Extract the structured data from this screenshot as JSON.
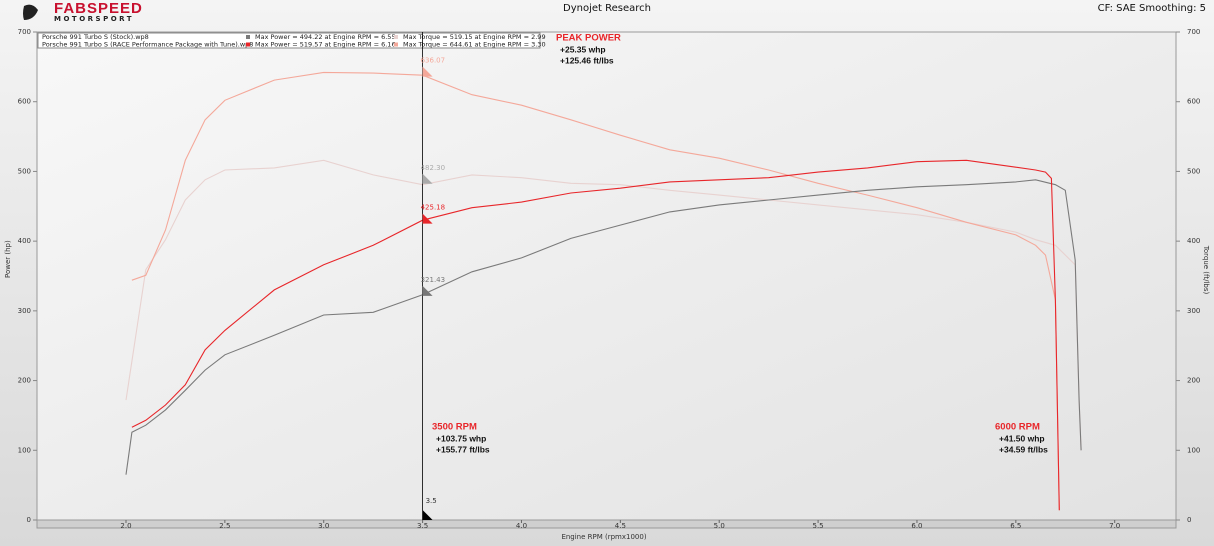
{
  "header": {
    "logo": "FABSPEED",
    "logo_sub": "MOTORSPORT",
    "title": "Dynojet Research",
    "settings": "CF: SAE Smoothing: 5"
  },
  "legend_runs": [
    {
      "file": "Porsche 991 Turbo S (Stock).wp8",
      "max_power": "Max Power = 494.22 at Engine RPM = 6.55",
      "max_torque": "Max Torque = 519.15 at Engine RPM = 2.99"
    },
    {
      "file": "Porsche 991 Turbo S (RACE Performance Package with Tune).wp8",
      "max_power": "Max Power = 519.57 at Engine RPM = 6.16",
      "max_torque": "Max Torque = 644.61 at Engine RPM = 3.30"
    }
  ],
  "chart_data": {
    "type": "line",
    "x_label": "Engine RPM (rpmx1000)",
    "y_label": "Power (hp)",
    "y2_label": "Torque (ft/lbs)",
    "xlim": [
      1.55,
      7.31
    ],
    "ylim": [
      0,
      700
    ],
    "y2lim": [
      0,
      700
    ],
    "xticks": [
      {
        "value": 2,
        "label": "2.0"
      },
      2.5,
      {
        "value": 3,
        "label": "3.0"
      },
      3.5,
      {
        "value": 4,
        "label": "4.0"
      },
      4.5,
      {
        "value": 5,
        "label": "5.0"
      },
      5.5,
      {
        "value": 6,
        "label": "6.0"
      },
      6.5,
      {
        "value": 7,
        "label": "7.0"
      }
    ],
    "yticks": [
      0,
      100,
      200,
      300,
      400,
      500,
      600,
      700
    ],
    "y2ticks": [
      0,
      100,
      200,
      300,
      400,
      500,
      600,
      700
    ],
    "grid": false,
    "series": [
      {
        "color": "#e8d2d0",
        "axis": "y2",
        "x": [
          2.0,
          2.1,
          2.2,
          2.3,
          2.4,
          2.5,
          2.75,
          3.0,
          3.25,
          3.5,
          3.75,
          4.0,
          4.25,
          4.5,
          4.75,
          5.0,
          5.25,
          5.5,
          5.75,
          6.0,
          6.25,
          6.5,
          6.6,
          6.7,
          6.8,
          6.82,
          6.83
        ],
        "values": [
          172,
          359,
          402,
          459,
          488,
          502,
          505,
          516,
          495,
          481,
          495,
          491,
          483,
          481,
          473,
          466,
          459,
          452,
          445,
          438,
          427,
          413,
          402,
          394,
          366,
          172,
          100
        ]
      },
      {
        "color": "#f4a89a",
        "axis": "y2",
        "x": [
          2.03,
          2.1,
          2.2,
          2.3,
          2.4,
          2.5,
          2.75,
          3.0,
          3.25,
          3.5,
          3.75,
          4.0,
          4.25,
          4.5,
          4.75,
          5.0,
          5.25,
          5.5,
          5.75,
          6.0,
          6.25,
          6.5,
          6.6,
          6.65,
          6.7,
          6.72
        ],
        "values": [
          344,
          351,
          416,
          516,
          574,
          602,
          631,
          642,
          641,
          638,
          610,
          595,
          574,
          552,
          531,
          519,
          502,
          483,
          466,
          448,
          427,
          409,
          394,
          380,
          316,
          14
        ]
      },
      {
        "color": "#7a7a7a",
        "x": [
          2.0,
          2.03,
          2.1,
          2.2,
          2.3,
          2.4,
          2.5,
          2.75,
          3.0,
          3.25,
          3.5,
          3.75,
          4.0,
          4.25,
          4.5,
          4.75,
          5.0,
          5.25,
          5.5,
          5.75,
          6.0,
          6.25,
          6.5,
          6.6,
          6.7,
          6.75,
          6.8,
          6.82,
          6.83
        ],
        "values": [
          65,
          126,
          136,
          158,
          186,
          215,
          237,
          265,
          294,
          298,
          323,
          356,
          376,
          404,
          423,
          442,
          452,
          459,
          466,
          473,
          478,
          481,
          485,
          488,
          481,
          473,
          373,
          172,
          100
        ]
      },
      {
        "color": "#e8262a",
        "x": [
          2.03,
          2.1,
          2.2,
          2.3,
          2.4,
          2.5,
          2.75,
          3.0,
          3.25,
          3.5,
          3.75,
          4.0,
          4.25,
          4.5,
          4.75,
          5.0,
          5.25,
          5.5,
          5.75,
          6.0,
          6.25,
          6.5,
          6.6,
          6.65,
          6.68,
          6.7,
          6.72
        ],
        "values": [
          133,
          143,
          165,
          194,
          244,
          272,
          330,
          366,
          394,
          430,
          448,
          456,
          469,
          476,
          485,
          488,
          491,
          499,
          505,
          514,
          516,
          506,
          502,
          499,
          490,
          315,
          14
        ]
      }
    ],
    "cursor": {
      "x": 3.5,
      "colors": [
        "#f4a89a",
        "#aaaaaa",
        "#e8262a",
        "#777777"
      ],
      "values": [
        636.07,
        482.3,
        425.18,
        321.43
      ],
      "value_labels": [
        "636.07",
        "482.30",
        "425.18",
        "321.43"
      ]
    },
    "annotations": [
      {
        "title": "PEAK POWER",
        "lines": [
          "+25.35 whp",
          "+125.46 ft/lbs"
        ]
      },
      {
        "title": "3500 RPM",
        "lines": [
          "+103.75 whp",
          "+155.77 ft/lbs"
        ]
      },
      {
        "title": "6000 RPM",
        "lines": [
          "+41.50 whp",
          "+34.59 ft/lbs"
        ]
      }
    ]
  }
}
